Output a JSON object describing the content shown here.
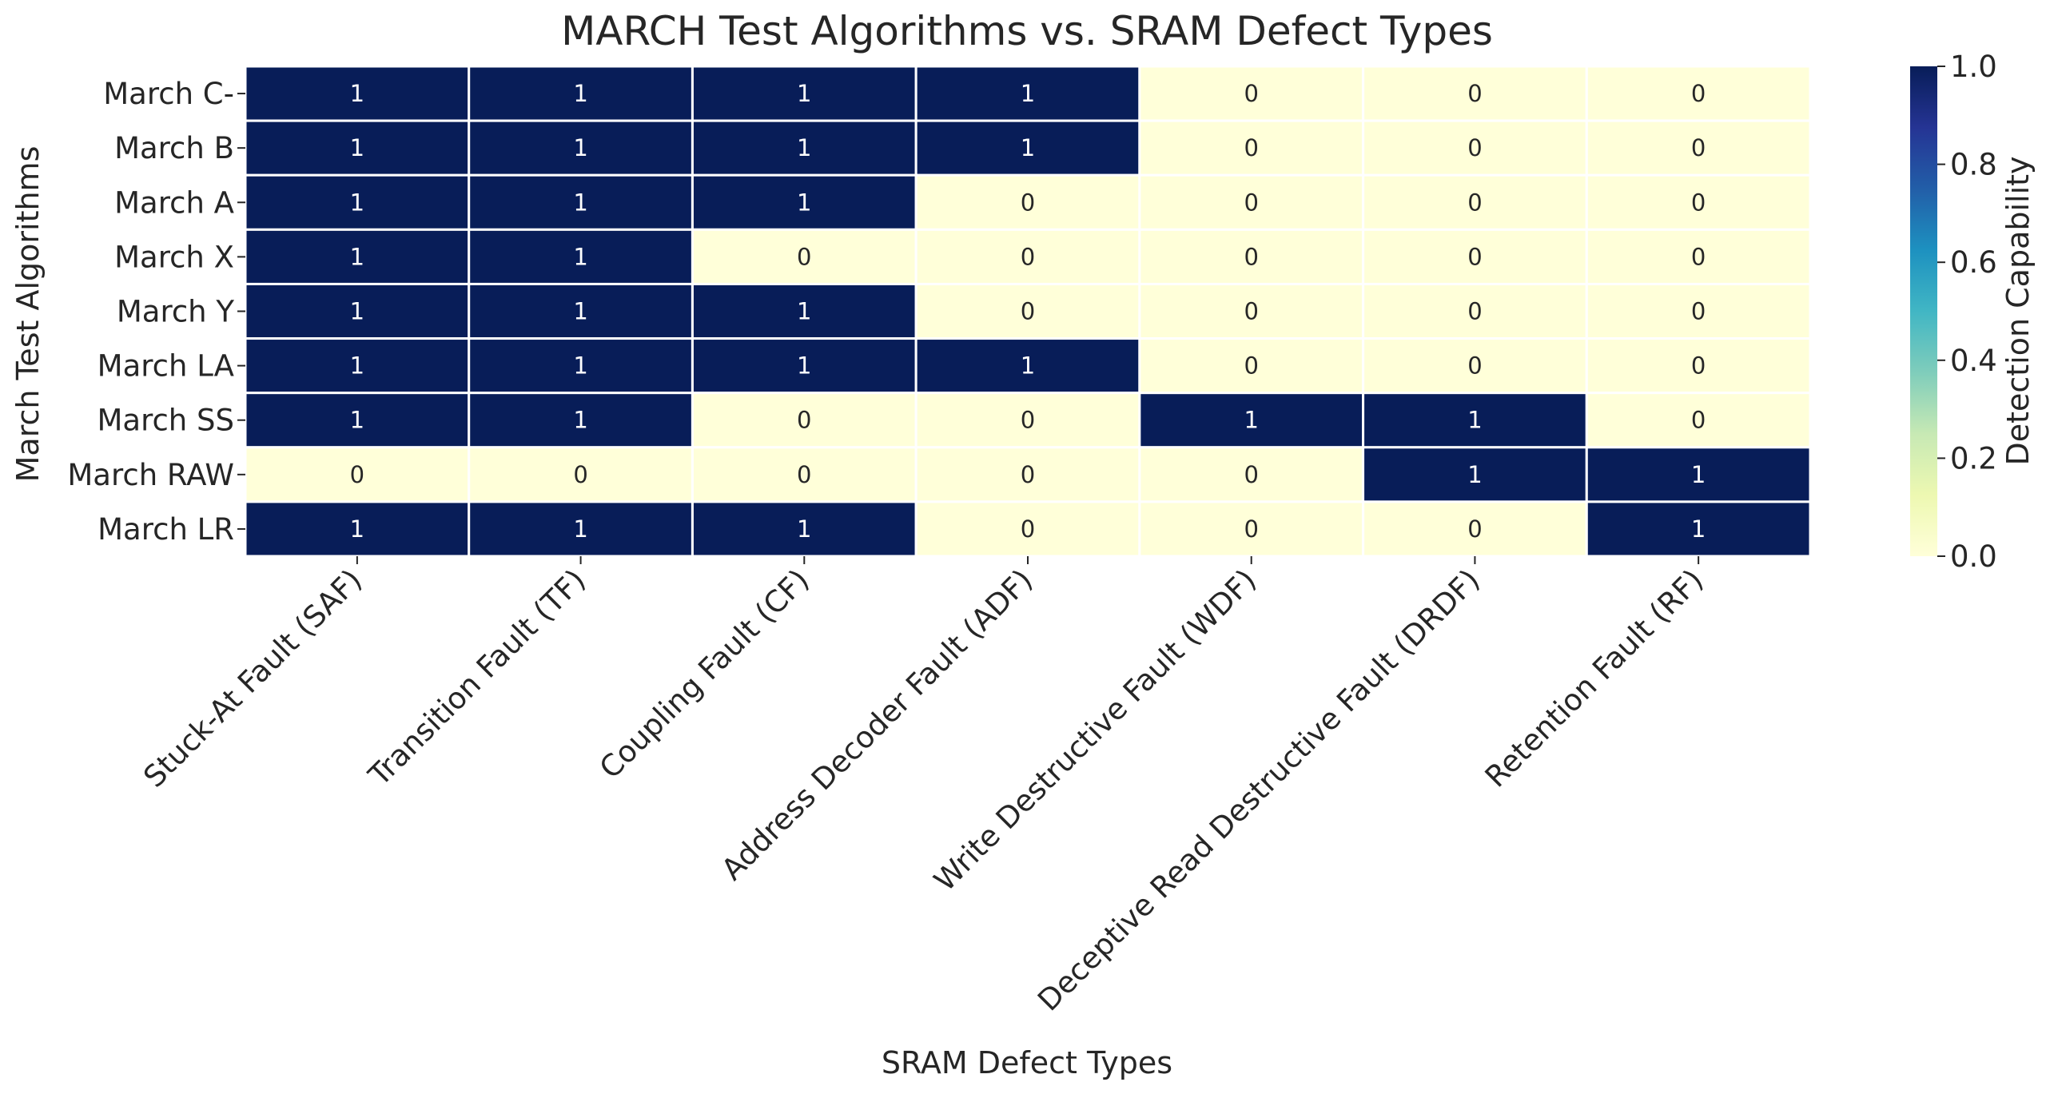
{
  "chart_data": {
    "type": "heatmap",
    "title": "MARCH Test Algorithms vs. SRAM Defect Types",
    "xlabel": "SRAM Defect Types",
    "ylabel": "March Test Algorithms",
    "x_categories": [
      "Stuck-At Fault (SAF)",
      "Transition Fault (TF)",
      "Coupling Fault (CF)",
      "Address Decoder Fault (ADF)",
      "Write Destructive Fault (WDF)",
      "Deceptive Read Destructive Fault (DRDF)",
      "Retention Fault (RF)"
    ],
    "y_categories": [
      "March C-",
      "March B",
      "March A",
      "March X",
      "March Y",
      "March LA",
      "March SS",
      "March RAW",
      "March LR"
    ],
    "values": [
      [
        1,
        1,
        1,
        1,
        0,
        0,
        0
      ],
      [
        1,
        1,
        1,
        1,
        0,
        0,
        0
      ],
      [
        1,
        1,
        1,
        0,
        0,
        0,
        0
      ],
      [
        1,
        1,
        0,
        0,
        0,
        0,
        0
      ],
      [
        1,
        1,
        1,
        0,
        0,
        0,
        0
      ],
      [
        1,
        1,
        1,
        1,
        0,
        0,
        0
      ],
      [
        1,
        1,
        0,
        0,
        1,
        1,
        0
      ],
      [
        0,
        0,
        0,
        0,
        0,
        1,
        1
      ],
      [
        1,
        1,
        1,
        0,
        0,
        0,
        1
      ]
    ],
    "colorbar": {
      "label": "Detection Capability",
      "range": [
        0.0,
        1.0
      ],
      "ticks": [
        "0.0",
        "0.2",
        "0.4",
        "0.6",
        "0.8",
        "1.0"
      ],
      "colormap": "YlGnBu",
      "low_color": "#ffffd9",
      "high_color": "#081d58"
    },
    "annotations": true,
    "grid_line_color": "#ffffff"
  }
}
